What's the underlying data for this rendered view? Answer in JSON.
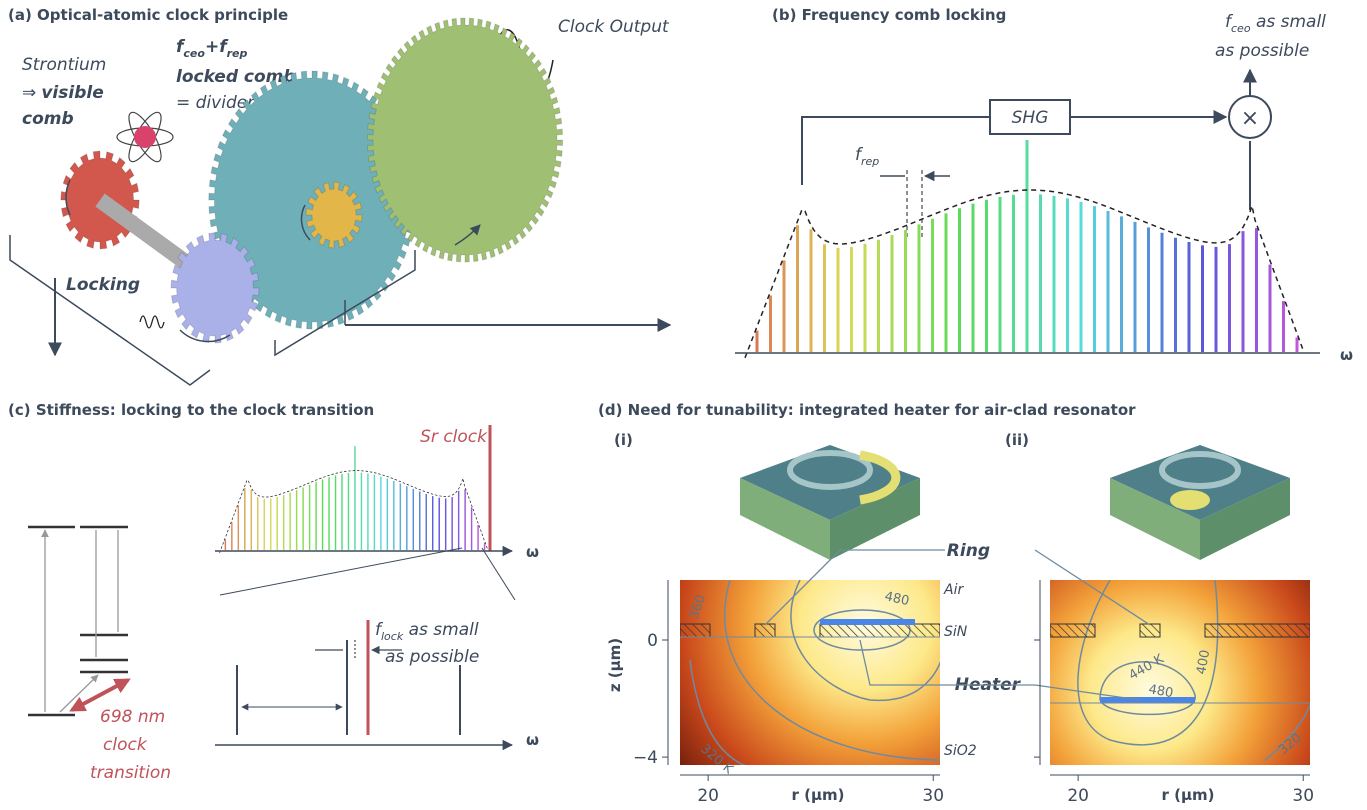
{
  "panel_a": {
    "title": "(a) Optical-atomic clock principle",
    "strontium": "Strontium",
    "arrow": "⇒",
    "visible": "visible",
    "comb": "comb",
    "f1": "f",
    "ceo": "ceo",
    "f2": "+f",
    "rep": "rep",
    "locked_comb": "locked comb",
    "divider": "= divider",
    "clock_output": "Clock Output",
    "locking": "Locking"
  },
  "panel_b": {
    "title": "(b) Frequency comb locking",
    "shg": "SHG",
    "mixer": "×",
    "frep_f": "f",
    "frep_sub": "rep",
    "fceo_f": "f",
    "fceo_sub": "ceo",
    "fceo_rest": " as small",
    "fceo_line2": "as possible",
    "omega": "ω"
  },
  "panel_c": {
    "title": "(c) Stiffness: locking to the clock transition",
    "sr_clock": "Sr clock",
    "omega_top": "ω",
    "omega_bottom": "ω",
    "flock_f": "f",
    "flock_sub": "lock",
    "flock_rest": " as small",
    "flock_line2": "as possible",
    "wavelength": "698 nm",
    "clock": "clock",
    "transition": "transition"
  },
  "panel_d": {
    "title": "(d) Need for tunability: integrated heater for air-clad resonator",
    "plots": [
      {
        "label": "(i)"
      },
      {
        "label": "(ii)"
      }
    ],
    "ring": "Ring",
    "heater": "Heater",
    "air": "Air",
    "sin": "SiN",
    "sio2": "SiO2",
    "contours_i": [
      "480",
      "360",
      "320 K"
    ],
    "contours_ii": [
      "440 K",
      "480",
      "400",
      "320"
    ],
    "axes": {
      "ylabel": "z (μm)",
      "xlabel": "r (μm)",
      "zlim": [
        -4.27,
        2.05
      ],
      "zticks": [
        0,
        {
          "value": -4,
          "label": "−4"
        }
      ],
      "rlim": [
        18.75,
        30.3
      ],
      "rticks": [
        20,
        30
      ]
    }
  }
}
